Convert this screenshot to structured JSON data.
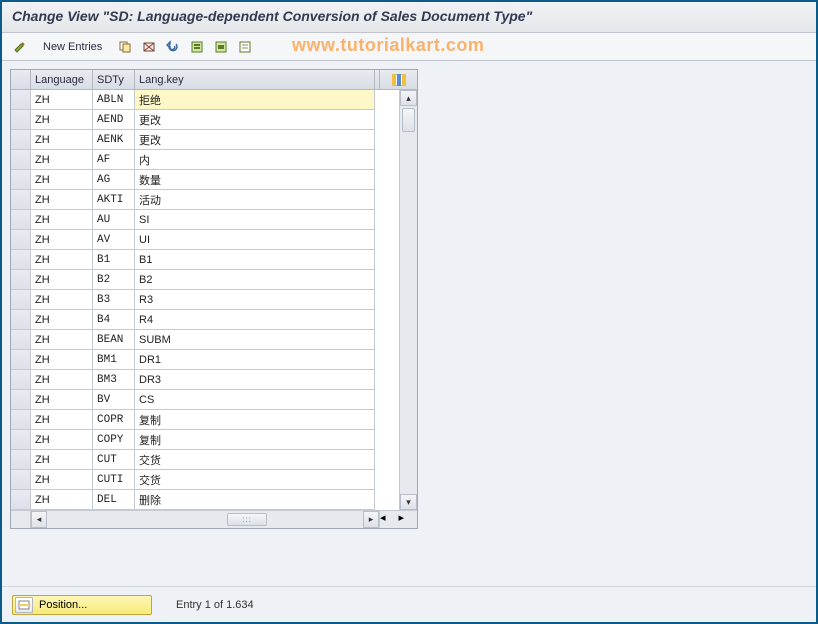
{
  "title": "Change View \"SD: Language-dependent Conversion of Sales Document Type\"",
  "toolbar": {
    "new_entries_label": "New Entries"
  },
  "watermark": "www.tutorialkart.com",
  "table": {
    "columns": {
      "language": "Language",
      "sdty": "SDTy",
      "langkey": "Lang.key"
    },
    "rows": [
      {
        "lang": "ZH",
        "sdty": "ABLN",
        "key": "拒绝"
      },
      {
        "lang": "ZH",
        "sdty": "AEND",
        "key": "更改"
      },
      {
        "lang": "ZH",
        "sdty": "AENK",
        "key": "更改"
      },
      {
        "lang": "ZH",
        "sdty": "AF",
        "key": "内"
      },
      {
        "lang": "ZH",
        "sdty": "AG",
        "key": "数量"
      },
      {
        "lang": "ZH",
        "sdty": "AKTI",
        "key": "活动"
      },
      {
        "lang": "ZH",
        "sdty": "AU",
        "key": "SI"
      },
      {
        "lang": "ZH",
        "sdty": "AV",
        "key": "UI"
      },
      {
        "lang": "ZH",
        "sdty": "B1",
        "key": "B1"
      },
      {
        "lang": "ZH",
        "sdty": "B2",
        "key": "B2"
      },
      {
        "lang": "ZH",
        "sdty": "B3",
        "key": "R3"
      },
      {
        "lang": "ZH",
        "sdty": "B4",
        "key": "R4"
      },
      {
        "lang": "ZH",
        "sdty": "BEAN",
        "key": "SUBM"
      },
      {
        "lang": "ZH",
        "sdty": "BM1",
        "key": "DR1"
      },
      {
        "lang": "ZH",
        "sdty": "BM3",
        "key": "DR3"
      },
      {
        "lang": "ZH",
        "sdty": "BV",
        "key": "CS"
      },
      {
        "lang": "ZH",
        "sdty": "COPR",
        "key": "复制"
      },
      {
        "lang": "ZH",
        "sdty": "COPY",
        "key": "复制"
      },
      {
        "lang": "ZH",
        "sdty": "CUT",
        "key": "交货"
      },
      {
        "lang": "ZH",
        "sdty": "CUTI",
        "key": "交货"
      },
      {
        "lang": "ZH",
        "sdty": "DEL",
        "key": "删除"
      }
    ]
  },
  "footer": {
    "position_label": "Position...",
    "status": "Entry 1 of 1.634"
  },
  "colors": {
    "border": "#0a5a8a",
    "highlight_row": "#fef8c8",
    "button_yellow": "#f7eb77",
    "watermark": "#f8b26a"
  }
}
